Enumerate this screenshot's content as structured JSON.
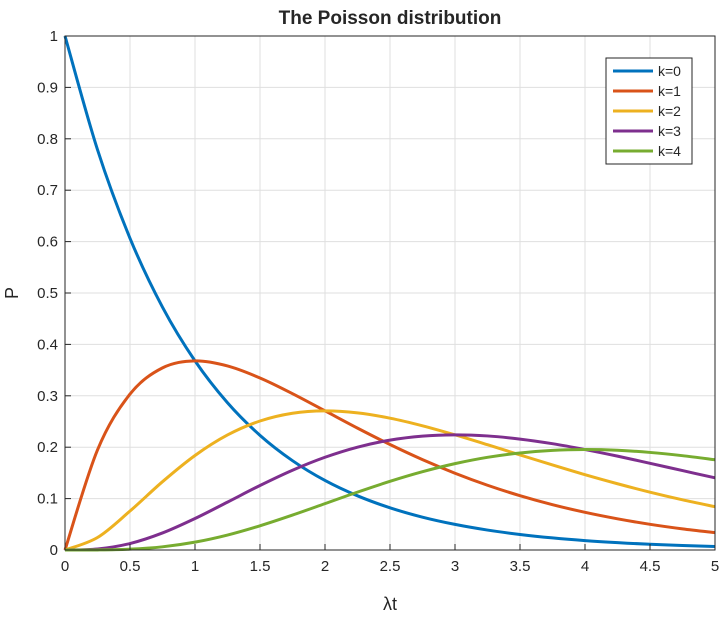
{
  "chart_data": {
    "type": "line",
    "title": "The Poisson distribution",
    "xlabel": "λt",
    "ylabel": "P",
    "xlim": [
      0,
      5
    ],
    "ylim": [
      0,
      1
    ],
    "xticks": [
      0,
      0.5,
      1,
      1.5,
      2,
      2.5,
      3,
      3.5,
      4,
      4.5,
      5
    ],
    "xtick_labels": [
      "0",
      "0.5",
      "1",
      "1.5",
      "2",
      "2.5",
      "3",
      "3.5",
      "4",
      "4.5",
      "5"
    ],
    "yticks": [
      0,
      0.1,
      0.2,
      0.3,
      0.4,
      0.5,
      0.6,
      0.7,
      0.8,
      0.9,
      1
    ],
    "ytick_labels": [
      "0",
      "0.1",
      "0.2",
      "0.3",
      "0.4",
      "0.5",
      "0.6",
      "0.7",
      "0.8",
      "0.9",
      "1"
    ],
    "grid": true,
    "legend_position": "top-right",
    "x": [
      0,
      0.25,
      0.5,
      0.75,
      1,
      1.25,
      1.5,
      1.75,
      2,
      2.25,
      2.5,
      2.75,
      3,
      3.25,
      3.5,
      3.75,
      4,
      4.25,
      4.5,
      4.75,
      5
    ],
    "series": [
      {
        "name": "k=0",
        "color": "#0072BD",
        "values": [
          1,
          0.7788,
          0.6065,
          0.4724,
          0.3679,
          0.2865,
          0.2231,
          0.1738,
          0.1353,
          0.1054,
          0.0821,
          0.0639,
          0.0498,
          0.0388,
          0.0302,
          0.0235,
          0.0183,
          0.0143,
          0.0111,
          0.0087,
          0.0067
        ]
      },
      {
        "name": "k=1",
        "color": "#D95319",
        "values": [
          0,
          0.1947,
          0.3033,
          0.3543,
          0.3679,
          0.3581,
          0.3347,
          0.3041,
          0.2707,
          0.2371,
          0.2052,
          0.1758,
          0.1494,
          0.126,
          0.1057,
          0.0882,
          0.0733,
          0.0607,
          0.05,
          0.0411,
          0.0337
        ]
      },
      {
        "name": "k=2",
        "color": "#EDB120",
        "values": [
          0,
          0.0243,
          0.0758,
          0.1329,
          0.1839,
          0.2238,
          0.251,
          0.2661,
          0.2707,
          0.2668,
          0.2565,
          0.2417,
          0.224,
          0.2048,
          0.185,
          0.1654,
          0.1465,
          0.1289,
          0.1125,
          0.0976,
          0.0842
        ]
      },
      {
        "name": "k=3",
        "color": "#7E2F8E",
        "values": [
          0,
          0.002,
          0.0126,
          0.0332,
          0.0613,
          0.0932,
          0.1255,
          0.1552,
          0.1804,
          0.2001,
          0.2138,
          0.2216,
          0.224,
          0.2219,
          0.2158,
          0.2068,
          0.1954,
          0.1826,
          0.1687,
          0.1545,
          0.1404
        ]
      },
      {
        "name": "k=4",
        "color": "#77AC30",
        "values": [
          0,
          0.0001,
          0.0016,
          0.0062,
          0.0153,
          0.0291,
          0.0471,
          0.0679,
          0.0902,
          0.1126,
          0.1336,
          0.1523,
          0.168,
          0.1803,
          0.1888,
          0.1939,
          0.1954,
          0.194,
          0.1898,
          0.1835,
          0.1755
        ]
      }
    ]
  }
}
